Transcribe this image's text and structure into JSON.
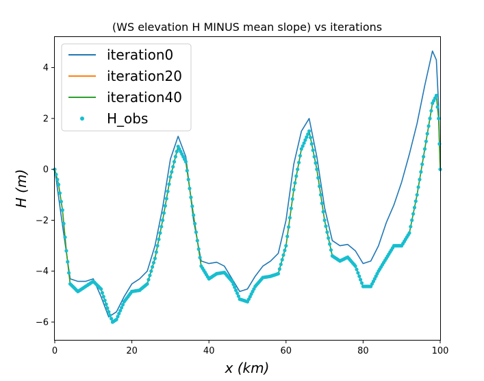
{
  "chart_data": {
    "type": "line",
    "title": "(WS elevation H MINUS mean slope) vs iterations",
    "xlabel": "x (km)",
    "ylabel": "H (m)",
    "xlim": [
      0,
      100
    ],
    "ylim": [
      -6.7,
      5.2
    ],
    "x_ticks": [
      0,
      20,
      40,
      60,
      80,
      100
    ],
    "y_ticks": [
      -6,
      -4,
      -2,
      0,
      2,
      4
    ],
    "x_tick_labels": [
      "0",
      "20",
      "40",
      "60",
      "80",
      "100"
    ],
    "y_tick_labels": [
      "−6",
      "−4",
      "−2",
      "0",
      "2",
      "4"
    ],
    "grid": false,
    "legend_position": "top-left",
    "series": [
      {
        "name": "iteration0",
        "style": "line",
        "color": "#1f77b4",
        "points": [
          [
            0,
            0
          ],
          [
            2,
            -2.2
          ],
          [
            4,
            -4.3
          ],
          [
            6,
            -4.4
          ],
          [
            8,
            -4.4
          ],
          [
            10,
            -4.3
          ],
          [
            12,
            -5.0
          ],
          [
            14,
            -5.8
          ],
          [
            16,
            -5.6
          ],
          [
            18,
            -5.0
          ],
          [
            20,
            -4.5
          ],
          [
            22,
            -4.3
          ],
          [
            24,
            -4.0
          ],
          [
            26,
            -3.0
          ],
          [
            28,
            -1.5
          ],
          [
            30,
            0.4
          ],
          [
            32,
            1.3
          ],
          [
            34,
            0.5
          ],
          [
            36,
            -2.0
          ],
          [
            38,
            -3.6
          ],
          [
            40,
            -3.7
          ],
          [
            42,
            -3.65
          ],
          [
            44,
            -3.8
          ],
          [
            46,
            -4.3
          ],
          [
            48,
            -4.8
          ],
          [
            50,
            -4.7
          ],
          [
            52,
            -4.2
          ],
          [
            54,
            -3.8
          ],
          [
            56,
            -3.6
          ],
          [
            58,
            -3.3
          ],
          [
            60,
            -2.0
          ],
          [
            62,
            0.2
          ],
          [
            64,
            1.5
          ],
          [
            66,
            2.0
          ],
          [
            68,
            0.5
          ],
          [
            70,
            -1.5
          ],
          [
            72,
            -2.8
          ],
          [
            74,
            -3.0
          ],
          [
            76,
            -2.95
          ],
          [
            78,
            -3.2
          ],
          [
            80,
            -3.7
          ],
          [
            82,
            -3.6
          ],
          [
            84,
            -3.0
          ],
          [
            86,
            -2.1
          ],
          [
            88,
            -1.4
          ],
          [
            90,
            -0.5
          ],
          [
            92,
            0.6
          ],
          [
            94,
            1.8
          ],
          [
            96,
            3.3
          ],
          [
            98,
            4.65
          ],
          [
            99,
            4.3
          ],
          [
            99.6,
            2.5
          ],
          [
            100,
            0
          ]
        ]
      },
      {
        "name": "iteration20",
        "style": "line",
        "color": "#ff7f0e",
        "points": [
          [
            0,
            0
          ],
          [
            1,
            -0.6
          ],
          [
            2,
            -1.6
          ],
          [
            3,
            -3.2
          ],
          [
            4,
            -4.5
          ],
          [
            6,
            -4.8
          ],
          [
            8,
            -4.6
          ],
          [
            10,
            -4.4
          ],
          [
            12,
            -4.7
          ],
          [
            14,
            -5.6
          ],
          [
            15,
            -6.0
          ],
          [
            16,
            -5.9
          ],
          [
            18,
            -5.2
          ],
          [
            20,
            -4.8
          ],
          [
            22,
            -4.75
          ],
          [
            24,
            -4.5
          ],
          [
            26,
            -3.5
          ],
          [
            28,
            -2.0
          ],
          [
            30,
            -0.3
          ],
          [
            32,
            0.9
          ],
          [
            34,
            0.3
          ],
          [
            36,
            -1.8
          ],
          [
            38,
            -3.8
          ],
          [
            40,
            -4.3
          ],
          [
            42,
            -4.1
          ],
          [
            44,
            -4.05
          ],
          [
            46,
            -4.4
          ],
          [
            48,
            -5.1
          ],
          [
            50,
            -5.2
          ],
          [
            52,
            -4.6
          ],
          [
            54,
            -4.25
          ],
          [
            56,
            -4.2
          ],
          [
            58,
            -4.1
          ],
          [
            60,
            -3.0
          ],
          [
            62,
            -0.8
          ],
          [
            64,
            0.8
          ],
          [
            66,
            1.5
          ],
          [
            68,
            0.0
          ],
          [
            70,
            -2.0
          ],
          [
            72,
            -3.4
          ],
          [
            74,
            -3.6
          ],
          [
            76,
            -3.45
          ],
          [
            78,
            -3.8
          ],
          [
            80,
            -4.6
          ],
          [
            82,
            -4.6
          ],
          [
            84,
            -4.0
          ],
          [
            86,
            -3.5
          ],
          [
            88,
            -3.0
          ],
          [
            90,
            -3.0
          ],
          [
            92,
            -2.5
          ],
          [
            94,
            -1.0
          ],
          [
            96,
            0.8
          ],
          [
            98,
            2.6
          ],
          [
            99,
            2.9
          ],
          [
            99.6,
            2.0
          ],
          [
            100,
            0
          ]
        ]
      },
      {
        "name": "iteration40",
        "style": "line",
        "color": "#2ca02c",
        "points": [
          [
            0,
            0
          ],
          [
            1,
            -0.6
          ],
          [
            2,
            -1.6
          ],
          [
            3,
            -3.2
          ],
          [
            4,
            -4.5
          ],
          [
            6,
            -4.8
          ],
          [
            8,
            -4.6
          ],
          [
            10,
            -4.4
          ],
          [
            12,
            -4.7
          ],
          [
            14,
            -5.6
          ],
          [
            15,
            -6.0
          ],
          [
            16,
            -5.9
          ],
          [
            18,
            -5.2
          ],
          [
            20,
            -4.8
          ],
          [
            22,
            -4.75
          ],
          [
            24,
            -4.5
          ],
          [
            26,
            -3.5
          ],
          [
            28,
            -2.0
          ],
          [
            30,
            -0.3
          ],
          [
            32,
            0.9
          ],
          [
            34,
            0.3
          ],
          [
            36,
            -1.8
          ],
          [
            38,
            -3.8
          ],
          [
            40,
            -4.3
          ],
          [
            42,
            -4.1
          ],
          [
            44,
            -4.05
          ],
          [
            46,
            -4.4
          ],
          [
            48,
            -5.1
          ],
          [
            50,
            -5.2
          ],
          [
            52,
            -4.6
          ],
          [
            54,
            -4.25
          ],
          [
            56,
            -4.2
          ],
          [
            58,
            -4.1
          ],
          [
            60,
            -3.0
          ],
          [
            62,
            -0.8
          ],
          [
            64,
            0.8
          ],
          [
            66,
            1.5
          ],
          [
            68,
            0.0
          ],
          [
            70,
            -2.0
          ],
          [
            72,
            -3.4
          ],
          [
            74,
            -3.6
          ],
          [
            76,
            -3.45
          ],
          [
            78,
            -3.8
          ],
          [
            80,
            -4.6
          ],
          [
            82,
            -4.6
          ],
          [
            84,
            -4.0
          ],
          [
            86,
            -3.5
          ],
          [
            88,
            -3.0
          ],
          [
            90,
            -3.0
          ],
          [
            92,
            -2.5
          ],
          [
            94,
            -1.0
          ],
          [
            96,
            0.8
          ],
          [
            98,
            2.6
          ],
          [
            99,
            2.9
          ],
          [
            99.6,
            2.0
          ],
          [
            100,
            0
          ]
        ]
      },
      {
        "name": "H_obs",
        "style": "markers",
        "color": "#17becf",
        "points": [
          [
            0,
            0
          ],
          [
            1,
            -0.6
          ],
          [
            2,
            -1.6
          ],
          [
            3,
            -3.2
          ],
          [
            4,
            -4.5
          ],
          [
            6,
            -4.8
          ],
          [
            8,
            -4.6
          ],
          [
            10,
            -4.4
          ],
          [
            12,
            -4.7
          ],
          [
            14,
            -5.6
          ],
          [
            15,
            -6.0
          ],
          [
            16,
            -5.9
          ],
          [
            18,
            -5.2
          ],
          [
            20,
            -4.8
          ],
          [
            22,
            -4.75
          ],
          [
            24,
            -4.5
          ],
          [
            26,
            -3.5
          ],
          [
            28,
            -2.0
          ],
          [
            30,
            -0.3
          ],
          [
            32,
            0.9
          ],
          [
            34,
            0.3
          ],
          [
            36,
            -1.8
          ],
          [
            38,
            -3.8
          ],
          [
            40,
            -4.3
          ],
          [
            42,
            -4.1
          ],
          [
            44,
            -4.05
          ],
          [
            46,
            -4.4
          ],
          [
            48,
            -5.1
          ],
          [
            50,
            -5.2
          ],
          [
            52,
            -4.6
          ],
          [
            54,
            -4.25
          ],
          [
            56,
            -4.2
          ],
          [
            58,
            -4.1
          ],
          [
            60,
            -3.0
          ],
          [
            62,
            -0.8
          ],
          [
            64,
            0.8
          ],
          [
            66,
            1.5
          ],
          [
            68,
            0.0
          ],
          [
            70,
            -2.0
          ],
          [
            72,
            -3.4
          ],
          [
            74,
            -3.6
          ],
          [
            76,
            -3.45
          ],
          [
            78,
            -3.8
          ],
          [
            80,
            -4.6
          ],
          [
            82,
            -4.6
          ],
          [
            84,
            -4.0
          ],
          [
            86,
            -3.5
          ],
          [
            88,
            -3.0
          ],
          [
            90,
            -3.0
          ],
          [
            92,
            -2.5
          ],
          [
            94,
            -1.0
          ],
          [
            96,
            0.8
          ],
          [
            98,
            2.6
          ],
          [
            99,
            2.9
          ],
          [
            99.6,
            2.0
          ],
          [
            100,
            0
          ]
        ]
      }
    ]
  }
}
